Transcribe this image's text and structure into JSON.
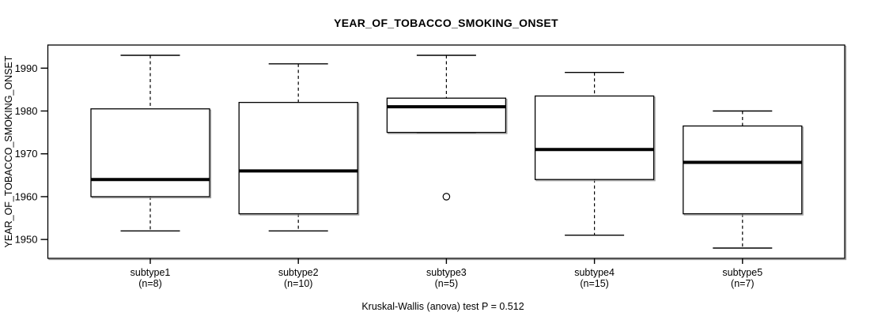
{
  "title": "YEAR_OF_TOBACCO_SMOKING_ONSET",
  "y_axis_label": "YEAR_OF_TOBACCO_SMOKING_ONSET",
  "caption": "Kruskal-Wallis (anova) test P = 0.512",
  "colors": {
    "line": "#000000",
    "shadow": "#9e9e9e",
    "background": "#ffffff",
    "box_fill": "#ffffff"
  },
  "chart_data": {
    "type": "boxplot",
    "title": "YEAR_OF_TOBACCO_SMOKING_ONSET",
    "xlabel": "",
    "ylabel": "YEAR_OF_TOBACCO_SMOKING_ONSET",
    "ylim": [
      1945.6,
      1995.4
    ],
    "yticks": [
      1950,
      1960,
      1970,
      1980,
      1990
    ],
    "grid": false,
    "legend": false,
    "annotation": "Kruskal-Wallis (anova) test P = 0.512",
    "categories": [
      "subtype1",
      "subtype2",
      "subtype3",
      "subtype4",
      "subtype5"
    ],
    "sample_size_labels": [
      "(n=8)",
      "(n=10)",
      "(n=5)",
      "(n=15)",
      "(n=7)"
    ],
    "series": [
      {
        "name": "subtype1",
        "n": 8,
        "whisker_low": 1952,
        "q1": 1960,
        "median": 1964,
        "q3": 1980.5,
        "whisker_high": 1993,
        "outliers": []
      },
      {
        "name": "subtype2",
        "n": 10,
        "whisker_low": 1952,
        "q1": 1956,
        "median": 1966,
        "q3": 1982,
        "whisker_high": 1991,
        "outliers": []
      },
      {
        "name": "subtype3",
        "n": 5,
        "whisker_low": 1975,
        "q1": 1975,
        "median": 1981,
        "q3": 1983,
        "whisker_high": 1993,
        "outliers": [
          1960
        ]
      },
      {
        "name": "subtype4",
        "n": 15,
        "whisker_low": 1951,
        "q1": 1964,
        "median": 1971,
        "q3": 1983.5,
        "whisker_high": 1989,
        "outliers": []
      },
      {
        "name": "subtype5",
        "n": 7,
        "whisker_low": 1948,
        "q1": 1956,
        "median": 1968,
        "q3": 1976.5,
        "whisker_high": 1980,
        "outliers": []
      }
    ]
  }
}
